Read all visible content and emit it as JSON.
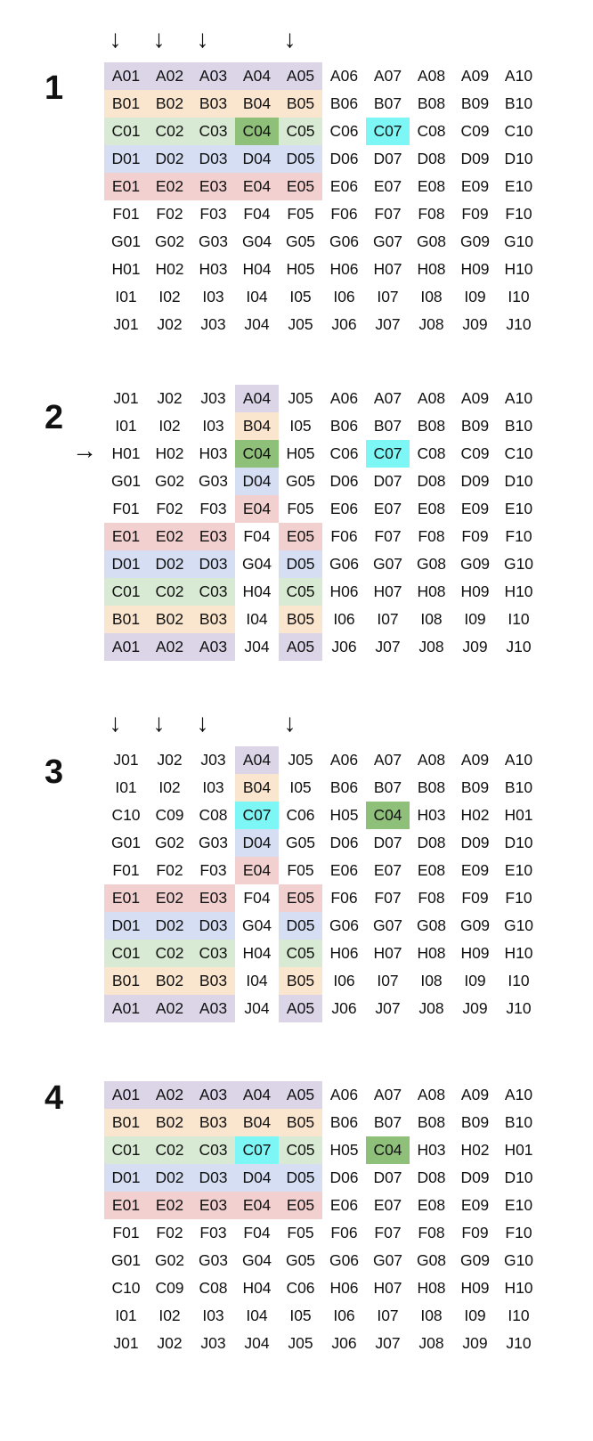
{
  "colors": {
    "A": "#dcd5e8",
    "B": "#fae5cf",
    "C": "#d9ead4",
    "D": "#d5def3",
    "E": "#f1d0cf",
    "G": "#8fc07a",
    "Y": "#7df6f6"
  },
  "panels": [
    {
      "label": "1",
      "arrow_down_cols": [
        0,
        1,
        2,
        4
      ],
      "arrow_right_row": null,
      "rows": [
        [
          "A01",
          "A02",
          "A03",
          "A04",
          "A05",
          "A06",
          "A07",
          "A08",
          "A09",
          "A10"
        ],
        [
          "B01",
          "B02",
          "B03",
          "B04",
          "B05",
          "B06",
          "B07",
          "B08",
          "B09",
          "B10"
        ],
        [
          "C01",
          "C02",
          "C03",
          "C04",
          "C05",
          "C06",
          "C07",
          "C08",
          "C09",
          "C10"
        ],
        [
          "D01",
          "D02",
          "D03",
          "D04",
          "D05",
          "D06",
          "D07",
          "D08",
          "D09",
          "D10"
        ],
        [
          "E01",
          "E02",
          "E03",
          "E04",
          "E05",
          "E06",
          "E07",
          "E08",
          "E09",
          "E10"
        ],
        [
          "F01",
          "F02",
          "F03",
          "F04",
          "F05",
          "F06",
          "F07",
          "F08",
          "F09",
          "F10"
        ],
        [
          "G01",
          "G02",
          "G03",
          "G04",
          "G05",
          "G06",
          "G07",
          "G08",
          "G09",
          "G10"
        ],
        [
          "H01",
          "H02",
          "H03",
          "H04",
          "H05",
          "H06",
          "H07",
          "H08",
          "H09",
          "H10"
        ],
        [
          "I01",
          "I02",
          "I03",
          "I04",
          "I05",
          "I06",
          "I07",
          "I08",
          "I09",
          "I10"
        ],
        [
          "J01",
          "J02",
          "J03",
          "J04",
          "J05",
          "J06",
          "J07",
          "J08",
          "J09",
          "J10"
        ]
      ],
      "colors": [
        "AAAAA.....",
        "BBBBB.....",
        "CCCGC.Y...",
        "DDDDD.....",
        "EEEEE.....",
        "..........",
        "..........",
        "..........",
        "..........",
        ".........."
      ]
    },
    {
      "label": "2",
      "arrow_down_cols": [],
      "arrow_right_row": 2,
      "rows": [
        [
          "J01",
          "J02",
          "J03",
          "A04",
          "J05",
          "A06",
          "A07",
          "A08",
          "A09",
          "A10"
        ],
        [
          "I01",
          "I02",
          "I03",
          "B04",
          "I05",
          "B06",
          "B07",
          "B08",
          "B09",
          "B10"
        ],
        [
          "H01",
          "H02",
          "H03",
          "C04",
          "H05",
          "C06",
          "C07",
          "C08",
          "C09",
          "C10"
        ],
        [
          "G01",
          "G02",
          "G03",
          "D04",
          "G05",
          "D06",
          "D07",
          "D08",
          "D09",
          "D10"
        ],
        [
          "F01",
          "F02",
          "F03",
          "E04",
          "F05",
          "E06",
          "E07",
          "E08",
          "E09",
          "E10"
        ],
        [
          "E01",
          "E02",
          "E03",
          "F04",
          "E05",
          "F06",
          "F07",
          "F08",
          "F09",
          "F10"
        ],
        [
          "D01",
          "D02",
          "D03",
          "G04",
          "D05",
          "G06",
          "G07",
          "G08",
          "G09",
          "G10"
        ],
        [
          "C01",
          "C02",
          "C03",
          "H04",
          "C05",
          "H06",
          "H07",
          "H08",
          "H09",
          "H10"
        ],
        [
          "B01",
          "B02",
          "B03",
          "I04",
          "B05",
          "I06",
          "I07",
          "I08",
          "I09",
          "I10"
        ],
        [
          "A01",
          "A02",
          "A03",
          "J04",
          "A05",
          "J06",
          "J07",
          "J08",
          "J09",
          "J10"
        ]
      ],
      "colors": [
        "...A......",
        "...B......",
        "...G..Y...",
        "...D......",
        "...E......",
        "EEE.E.....",
        "DDD.D.....",
        "CCC.C.....",
        "BBB.B.....",
        "AAA.A....."
      ]
    },
    {
      "label": "3",
      "arrow_down_cols": [
        0,
        1,
        2,
        4
      ],
      "arrow_right_row": null,
      "rows": [
        [
          "J01",
          "J02",
          "J03",
          "A04",
          "J05",
          "A06",
          "A07",
          "A08",
          "A09",
          "A10"
        ],
        [
          "I01",
          "I02",
          "I03",
          "B04",
          "I05",
          "B06",
          "B07",
          "B08",
          "B09",
          "B10"
        ],
        [
          "C10",
          "C09",
          "C08",
          "C07",
          "C06",
          "H05",
          "C04",
          "H03",
          "H02",
          "H01"
        ],
        [
          "G01",
          "G02",
          "G03",
          "D04",
          "G05",
          "D06",
          "D07",
          "D08",
          "D09",
          "D10"
        ],
        [
          "F01",
          "F02",
          "F03",
          "E04",
          "F05",
          "E06",
          "E07",
          "E08",
          "E09",
          "E10"
        ],
        [
          "E01",
          "E02",
          "E03",
          "F04",
          "E05",
          "F06",
          "F07",
          "F08",
          "F09",
          "F10"
        ],
        [
          "D01",
          "D02",
          "D03",
          "G04",
          "D05",
          "G06",
          "G07",
          "G08",
          "G09",
          "G10"
        ],
        [
          "C01",
          "C02",
          "C03",
          "H04",
          "C05",
          "H06",
          "H07",
          "H08",
          "H09",
          "H10"
        ],
        [
          "B01",
          "B02",
          "B03",
          "I04",
          "B05",
          "I06",
          "I07",
          "I08",
          "I09",
          "I10"
        ],
        [
          "A01",
          "A02",
          "A03",
          "J04",
          "A05",
          "J06",
          "J07",
          "J08",
          "J09",
          "J10"
        ]
      ],
      "colors": [
        "...A......",
        "...B......",
        "...Y..G...",
        "...D......",
        "...E......",
        "EEE.E.....",
        "DDD.D.....",
        "CCC.C.....",
        "BBB.B.....",
        "AAA.A....."
      ]
    },
    {
      "label": "4",
      "arrow_down_cols": [],
      "arrow_right_row": null,
      "rows": [
        [
          "A01",
          "A02",
          "A03",
          "A04",
          "A05",
          "A06",
          "A07",
          "A08",
          "A09",
          "A10"
        ],
        [
          "B01",
          "B02",
          "B03",
          "B04",
          "B05",
          "B06",
          "B07",
          "B08",
          "B09",
          "B10"
        ],
        [
          "C01",
          "C02",
          "C03",
          "C07",
          "C05",
          "H05",
          "C04",
          "H03",
          "H02",
          "H01"
        ],
        [
          "D01",
          "D02",
          "D03",
          "D04",
          "D05",
          "D06",
          "D07",
          "D08",
          "D09",
          "D10"
        ],
        [
          "E01",
          "E02",
          "E03",
          "E04",
          "E05",
          "E06",
          "E07",
          "E08",
          "E09",
          "E10"
        ],
        [
          "F01",
          "F02",
          "F03",
          "F04",
          "F05",
          "F06",
          "F07",
          "F08",
          "F09",
          "F10"
        ],
        [
          "G01",
          "G02",
          "G03",
          "G04",
          "G05",
          "G06",
          "G07",
          "G08",
          "G09",
          "G10"
        ],
        [
          "C10",
          "C09",
          "C08",
          "H04",
          "C06",
          "H06",
          "H07",
          "H08",
          "H09",
          "H10"
        ],
        [
          "I01",
          "I02",
          "I03",
          "I04",
          "I05",
          "I06",
          "I07",
          "I08",
          "I09",
          "I10"
        ],
        [
          "J01",
          "J02",
          "J03",
          "J04",
          "J05",
          "J06",
          "J07",
          "J08",
          "J09",
          "J10"
        ]
      ],
      "colors": [
        "AAAAA.....",
        "BBBBB.....",
        "CCCYC.G...",
        "DDDDD.....",
        "EEEEE.....",
        "..........",
        "..........",
        "..........",
        "..........",
        ".........."
      ]
    }
  ]
}
